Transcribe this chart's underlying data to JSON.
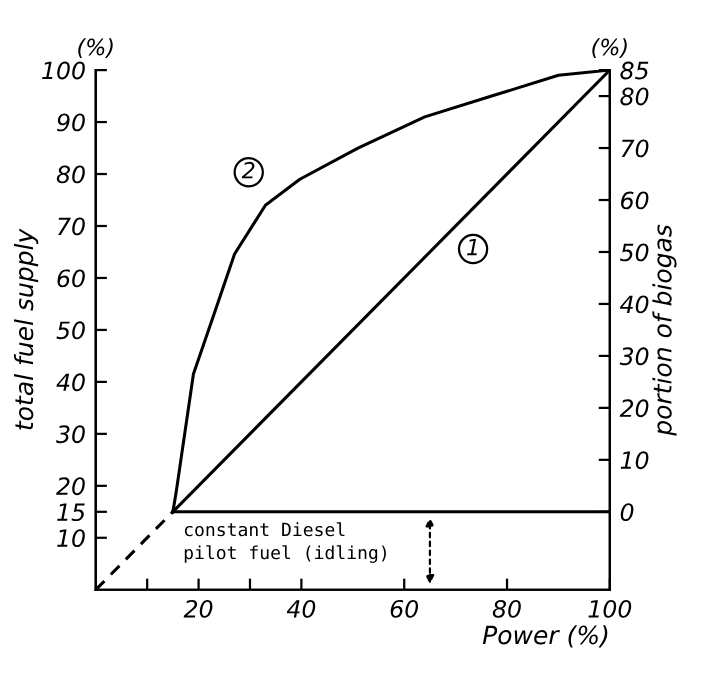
{
  "chart_data": {
    "type": "line",
    "xlabel": "Power (%)",
    "ylabel": "total fuel supply",
    "y2label": "portion of biogas",
    "xlim": [
      0,
      100
    ],
    "xticks": [
      {
        "value": 10,
        "label": null
      },
      20,
      {
        "value": 30,
        "label": null
      },
      40,
      60,
      80,
      100
    ],
    "ylim": [
      0,
      100
    ],
    "yticks": [
      10,
      15,
      20,
      30,
      40,
      50,
      60,
      70,
      80,
      90,
      100
    ],
    "y2lim": [
      -15,
      85
    ],
    "y2ticks": [
      0,
      10,
      20,
      30,
      40,
      50,
      60,
      70,
      80,
      85
    ],
    "grid": false,
    "marker": "none",
    "series": [
      {
        "name": "2",
        "color": "#000000",
        "line_style": "solid",
        "x": [
          15,
          15.6,
          19,
          23,
          27,
          33,
          39.7,
          51,
          64,
          77,
          90,
          100
        ],
        "values": [
          15,
          18.5,
          41.5,
          53,
          64.6,
          74,
          79,
          85,
          91,
          95,
          99,
          100
        ]
      },
      {
        "name": "1",
        "color": "#000000",
        "line_style": "solid",
        "x": [
          15,
          100
        ],
        "values": [
          15,
          100
        ]
      },
      {
        "color": "#000000",
        "line_style": "dashed",
        "x": [
          0,
          15
        ],
        "values": [
          0,
          15
        ]
      },
      {
        "color": "#000000",
        "line_style": "solid",
        "x": [
          15,
          100
        ],
        "values": [
          15,
          15
        ]
      }
    ],
    "annotations": [
      "(%)",
      "(%)",
      {
        "text": "constant Diesel\npilot fuel (idling)",
        "x": 65,
        "y": 15
      }
    ]
  }
}
